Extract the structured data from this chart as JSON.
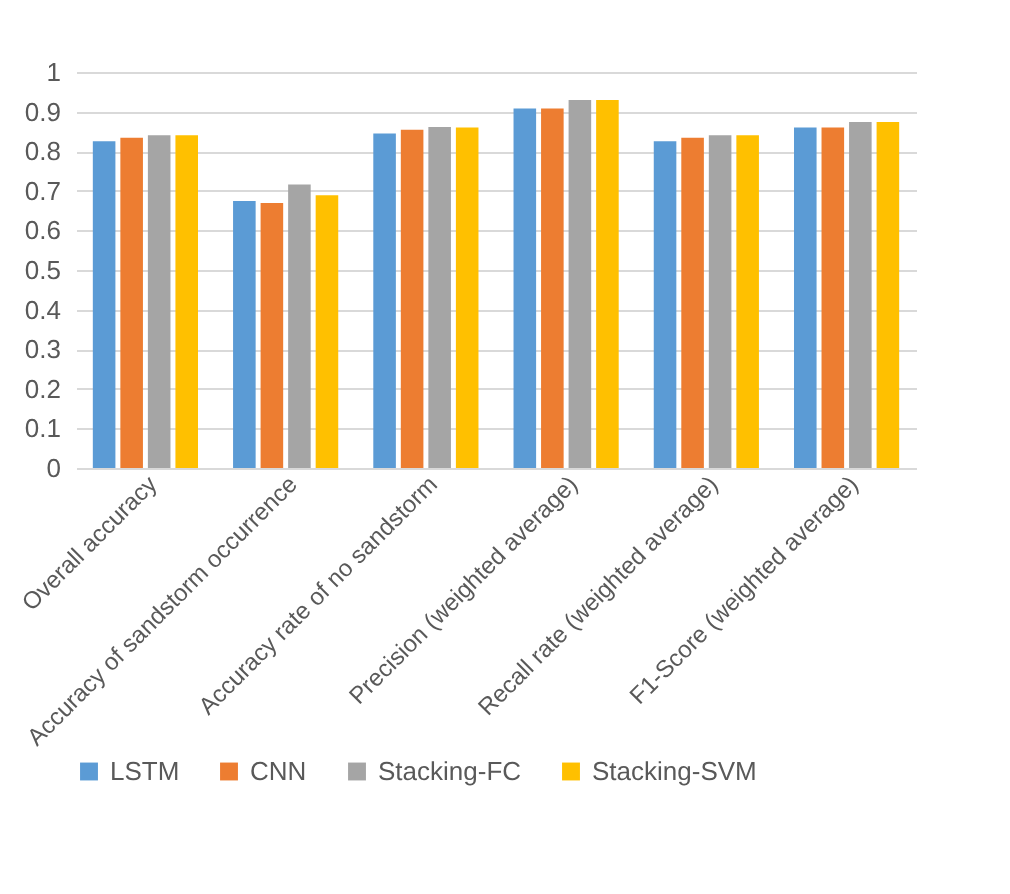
{
  "chart_data": {
    "type": "bar",
    "categories": [
      "Overall accuracy",
      "Accuracy of sandstorm occurrence",
      "Accuracy rate of no sandstorm",
      "Precision (weighted average)",
      "Recall rate (weighted average)",
      "F1-Score (weighted average)"
    ],
    "series": [
      {
        "name": "LSTM",
        "color": "#5b9bd5",
        "values": [
          0.825,
          0.674,
          0.845,
          0.908,
          0.825,
          0.86
        ]
      },
      {
        "name": "CNN",
        "color": "#ed7d31",
        "values": [
          0.834,
          0.669,
          0.854,
          0.908,
          0.834,
          0.86
        ]
      },
      {
        "name": "Stacking-FC",
        "color": "#a5a5a5",
        "values": [
          0.84,
          0.716,
          0.861,
          0.929,
          0.84,
          0.874
        ]
      },
      {
        "name": "Stacking-SVM",
        "color": "#ffc000",
        "values": [
          0.84,
          0.689,
          0.86,
          0.929,
          0.84,
          0.874
        ]
      }
    ],
    "ylim": [
      0,
      1
    ],
    "yticks": [
      0,
      0.1,
      0.2,
      0.3,
      0.4,
      0.5,
      0.6,
      0.7,
      0.8,
      0.9,
      1
    ],
    "grid": "y",
    "legend": "bottom"
  }
}
